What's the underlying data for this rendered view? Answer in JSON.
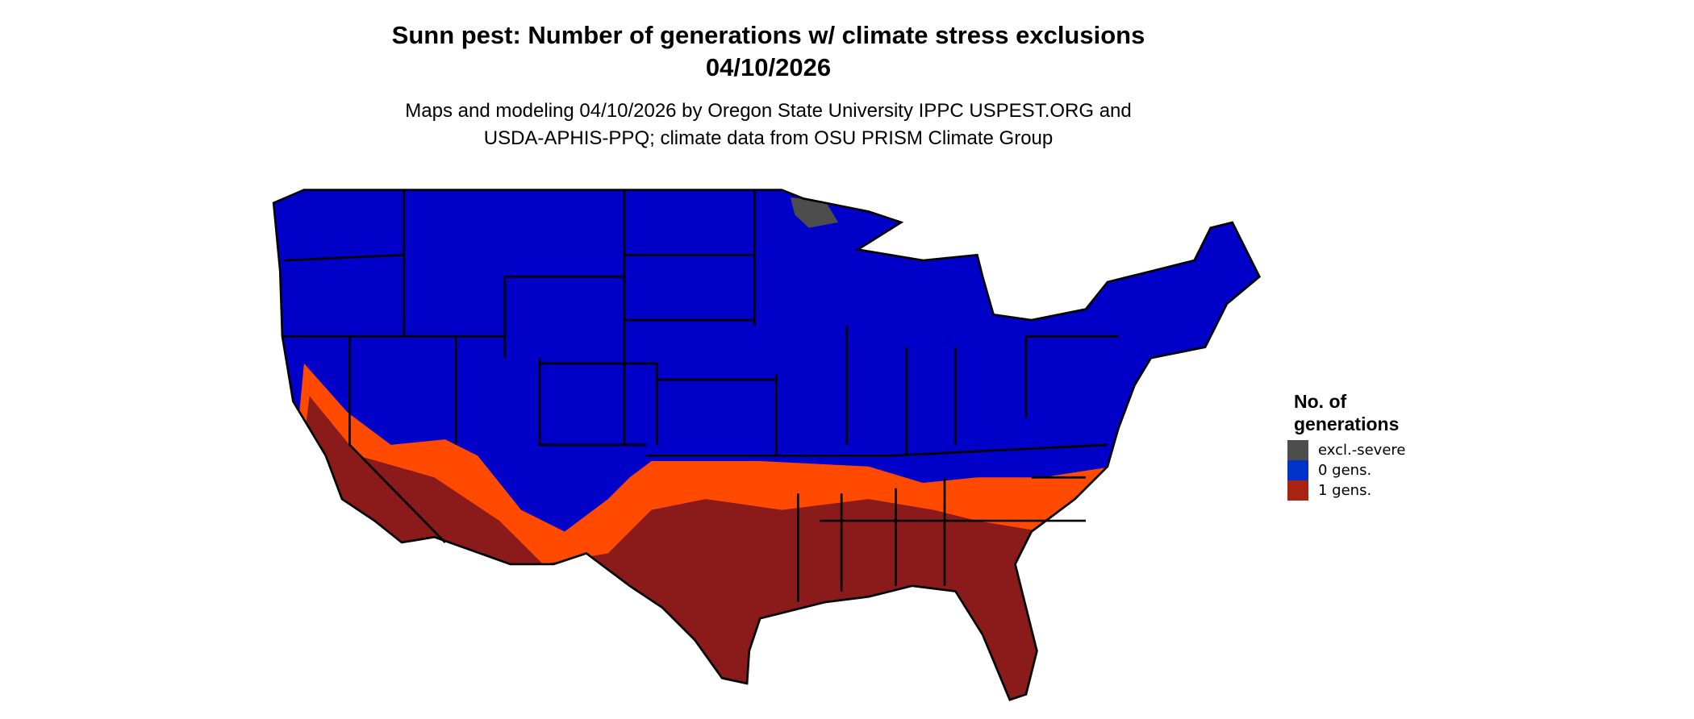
{
  "title": {
    "line1": "Sunn pest: Number of generations w/ climate stress exclusions",
    "line2": "04/10/2026"
  },
  "subtitle": {
    "line1": "Maps and modeling 04/10/2026 by Oregon State University IPPC USPEST.ORG and",
    "line2": "USDA-APHIS-PPQ; climate data from OSU PRISM Climate Group"
  },
  "legend": {
    "title_line1": "No. of",
    "title_line2": "generations",
    "items": [
      {
        "label": "excl.-severe",
        "color": "#4d4d4d"
      },
      {
        "label": "0 gens.",
        "color": "#0033cc"
      },
      {
        "label": "1 gens.",
        "color": "#aa2211"
      }
    ]
  },
  "map_colors": {
    "zero_gens": "#0000c8",
    "one_gen_orange": "#ff4a00",
    "one_gen_dark": "#8b1a1a",
    "excluded": "#4d4d4d",
    "border": "#000000"
  }
}
